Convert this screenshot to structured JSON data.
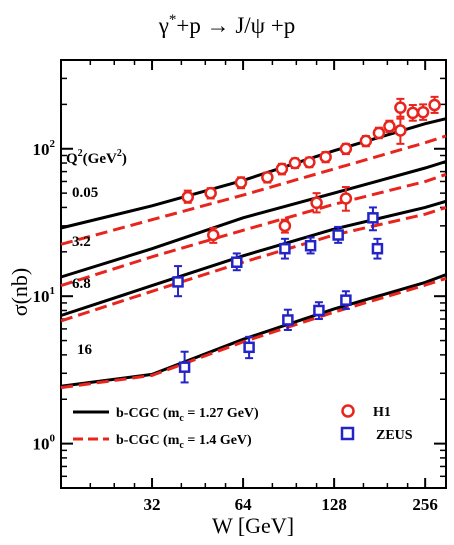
{
  "chart_data": {
    "type": "scatter",
    "title": {
      "gamma": "γ",
      "star": "*",
      "rest": "+p → J/ψ +p"
    },
    "xlabel": "W [GeV]",
    "ylabel": "σ(nb)",
    "x_scale": "log",
    "y_scale": "log",
    "xlim": [
      16,
      300
    ],
    "ylim": [
      0.5,
      400
    ],
    "x_ticks": [
      {
        "value": 32,
        "label": "32"
      },
      {
        "value": 64,
        "label": "64"
      },
      {
        "value": 128,
        "label": "128"
      },
      {
        "value": 256,
        "label": "256"
      }
    ],
    "y_ticks": [
      {
        "value": 1,
        "base": "10",
        "exp": "0"
      },
      {
        "value": 10,
        "base": "10",
        "exp": "1"
      },
      {
        "value": 100,
        "base": "10",
        "exp": "2"
      }
    ],
    "q2_header": {
      "q": "Q",
      "sup": "2",
      "unit": "(GeV",
      "sup2": "2",
      "close": ")"
    },
    "curve_labels": [
      {
        "text": "0.05",
        "q2": 0.05
      },
      {
        "text": "3.2",
        "q2": 3.2
      },
      {
        "text": "6.8",
        "q2": 6.8
      },
      {
        "text": "16",
        "q2": 16
      }
    ],
    "models": [
      {
        "name_main": "b-CGC (m",
        "name_sub": "c",
        "name_tail": " = 1.27 GeV)",
        "style": "solid",
        "color": "#000000",
        "curves": [
          {
            "q2": 0.05,
            "points": [
              [
                16,
                29
              ],
              [
                32,
                41
              ],
              [
                64,
                61
              ],
              [
                128,
                97
              ],
              [
                256,
                148
              ],
              [
                300,
                160
              ]
            ]
          },
          {
            "q2": 3.2,
            "points": [
              [
                16,
                13.5
              ],
              [
                32,
                21
              ],
              [
                64,
                34
              ],
              [
                128,
                50
              ],
              [
                256,
                74
              ],
              [
                300,
                82
              ]
            ]
          },
          {
            "q2": 6.8,
            "points": [
              [
                16,
                7.4
              ],
              [
                32,
                11.8
              ],
              [
                64,
                18.8
              ],
              [
                128,
                28.5
              ],
              [
                256,
                40
              ],
              [
                300,
                44
              ]
            ]
          },
          {
            "q2": 16,
            "points": [
              [
                16,
                2.45
              ],
              [
                32,
                2.95
              ],
              [
                64,
                5.1
              ],
              [
                128,
                8.2
              ],
              [
                256,
                12.4
              ],
              [
                300,
                14
              ]
            ]
          }
        ]
      },
      {
        "name_main": "b-CGC (m",
        "name_sub": "c",
        "name_tail": " = 1.4 GeV)",
        "style": "dashed",
        "color": "#e8241c",
        "curves": [
          {
            "q2": 0.05,
            "points": [
              [
                16,
                22.5
              ],
              [
                32,
                33
              ],
              [
                64,
                48.5
              ],
              [
                128,
                73
              ],
              [
                256,
                110
              ],
              [
                300,
                122
              ]
            ]
          },
          {
            "q2": 3.2,
            "points": [
              [
                16,
                11.8
              ],
              [
                32,
                18.5
              ],
              [
                64,
                28
              ],
              [
                128,
                42
              ],
              [
                256,
                60
              ],
              [
                300,
                67
              ]
            ]
          },
          {
            "q2": 6.8,
            "points": [
              [
                16,
                6.8
              ],
              [
                32,
                10.8
              ],
              [
                64,
                17
              ],
              [
                128,
                26
              ],
              [
                256,
                36
              ],
              [
                300,
                40
              ]
            ]
          },
          {
            "q2": 16,
            "points": [
              [
                16,
                2.4
              ],
              [
                32,
                2.9
              ],
              [
                64,
                4.9
              ],
              [
                128,
                7.8
              ],
              [
                256,
                11.9
              ],
              [
                300,
                13.2
              ]
            ]
          }
        ]
      }
    ],
    "series": [
      {
        "name": "H1",
        "marker": "circle",
        "color": "#e8241c",
        "points": [
          {
            "x": 42,
            "y": 47,
            "ylo": 43,
            "yhi": 52
          },
          {
            "x": 50,
            "y": 50,
            "ylo": 46,
            "yhi": 54
          },
          {
            "x": 63,
            "y": 59,
            "ylo": 54,
            "yhi": 64
          },
          {
            "x": 77,
            "y": 64,
            "ylo": 59,
            "yhi": 69
          },
          {
            "x": 86,
            "y": 73,
            "ylo": 67,
            "yhi": 79
          },
          {
            "x": 95,
            "y": 80,
            "ylo": 74,
            "yhi": 86
          },
          {
            "x": 106,
            "y": 81,
            "ylo": 75,
            "yhi": 87
          },
          {
            "x": 120,
            "y": 88,
            "ylo": 81,
            "yhi": 95
          },
          {
            "x": 140,
            "y": 100,
            "ylo": 92,
            "yhi": 108
          },
          {
            "x": 163,
            "y": 113,
            "ylo": 104,
            "yhi": 122
          },
          {
            "x": 180,
            "y": 128,
            "ylo": 118,
            "yhi": 139
          },
          {
            "x": 195,
            "y": 142,
            "ylo": 130,
            "yhi": 155
          },
          {
            "x": 212,
            "y": 133,
            "ylo": 108,
            "yhi": 160
          },
          {
            "x": 212,
            "y": 190,
            "ylo": 165,
            "yhi": 218
          },
          {
            "x": 233,
            "y": 175,
            "ylo": 155,
            "yhi": 198
          },
          {
            "x": 252,
            "y": 177,
            "ylo": 157,
            "yhi": 200
          },
          {
            "x": 275,
            "y": 198,
            "ylo": 175,
            "yhi": 225
          },
          {
            "x": 51,
            "y": 26,
            "ylo": 23,
            "yhi": 29
          },
          {
            "x": 112,
            "y": 43,
            "ylo": 37,
            "yhi": 50
          },
          {
            "x": 140,
            "y": 46,
            "ylo": 38,
            "yhi": 55
          },
          {
            "x": 88,
            "y": 30,
            "ylo": 27,
            "yhi": 33
          }
        ]
      },
      {
        "name": "ZEUS",
        "marker": "square",
        "color": "#2323c8",
        "points": [
          {
            "x": 39,
            "y": 12.5,
            "ylo": 10,
            "yhi": 16
          },
          {
            "x": 61,
            "y": 17,
            "ylo": 15,
            "yhi": 19.5
          },
          {
            "x": 88,
            "y": 21,
            "ylo": 18,
            "yhi": 24.5
          },
          {
            "x": 107,
            "y": 22,
            "ylo": 19.5,
            "yhi": 25
          },
          {
            "x": 132,
            "y": 26,
            "ylo": 23,
            "yhi": 29.5
          },
          {
            "x": 172,
            "y": 34,
            "ylo": 28,
            "yhi": 40
          },
          {
            "x": 178,
            "y": 21,
            "ylo": 18,
            "yhi": 24.5
          },
          {
            "x": 41,
            "y": 3.3,
            "ylo": 2.6,
            "yhi": 4.2
          },
          {
            "x": 67,
            "y": 4.5,
            "ylo": 3.8,
            "yhi": 5.3
          },
          {
            "x": 90,
            "y": 6.9,
            "ylo": 5.9,
            "yhi": 8.1
          },
          {
            "x": 114,
            "y": 8,
            "ylo": 7,
            "yhi": 9.1
          },
          {
            "x": 140,
            "y": 9.4,
            "ylo": 8.2,
            "yhi": 10.8
          }
        ]
      }
    ],
    "legend_position": "bottom"
  }
}
